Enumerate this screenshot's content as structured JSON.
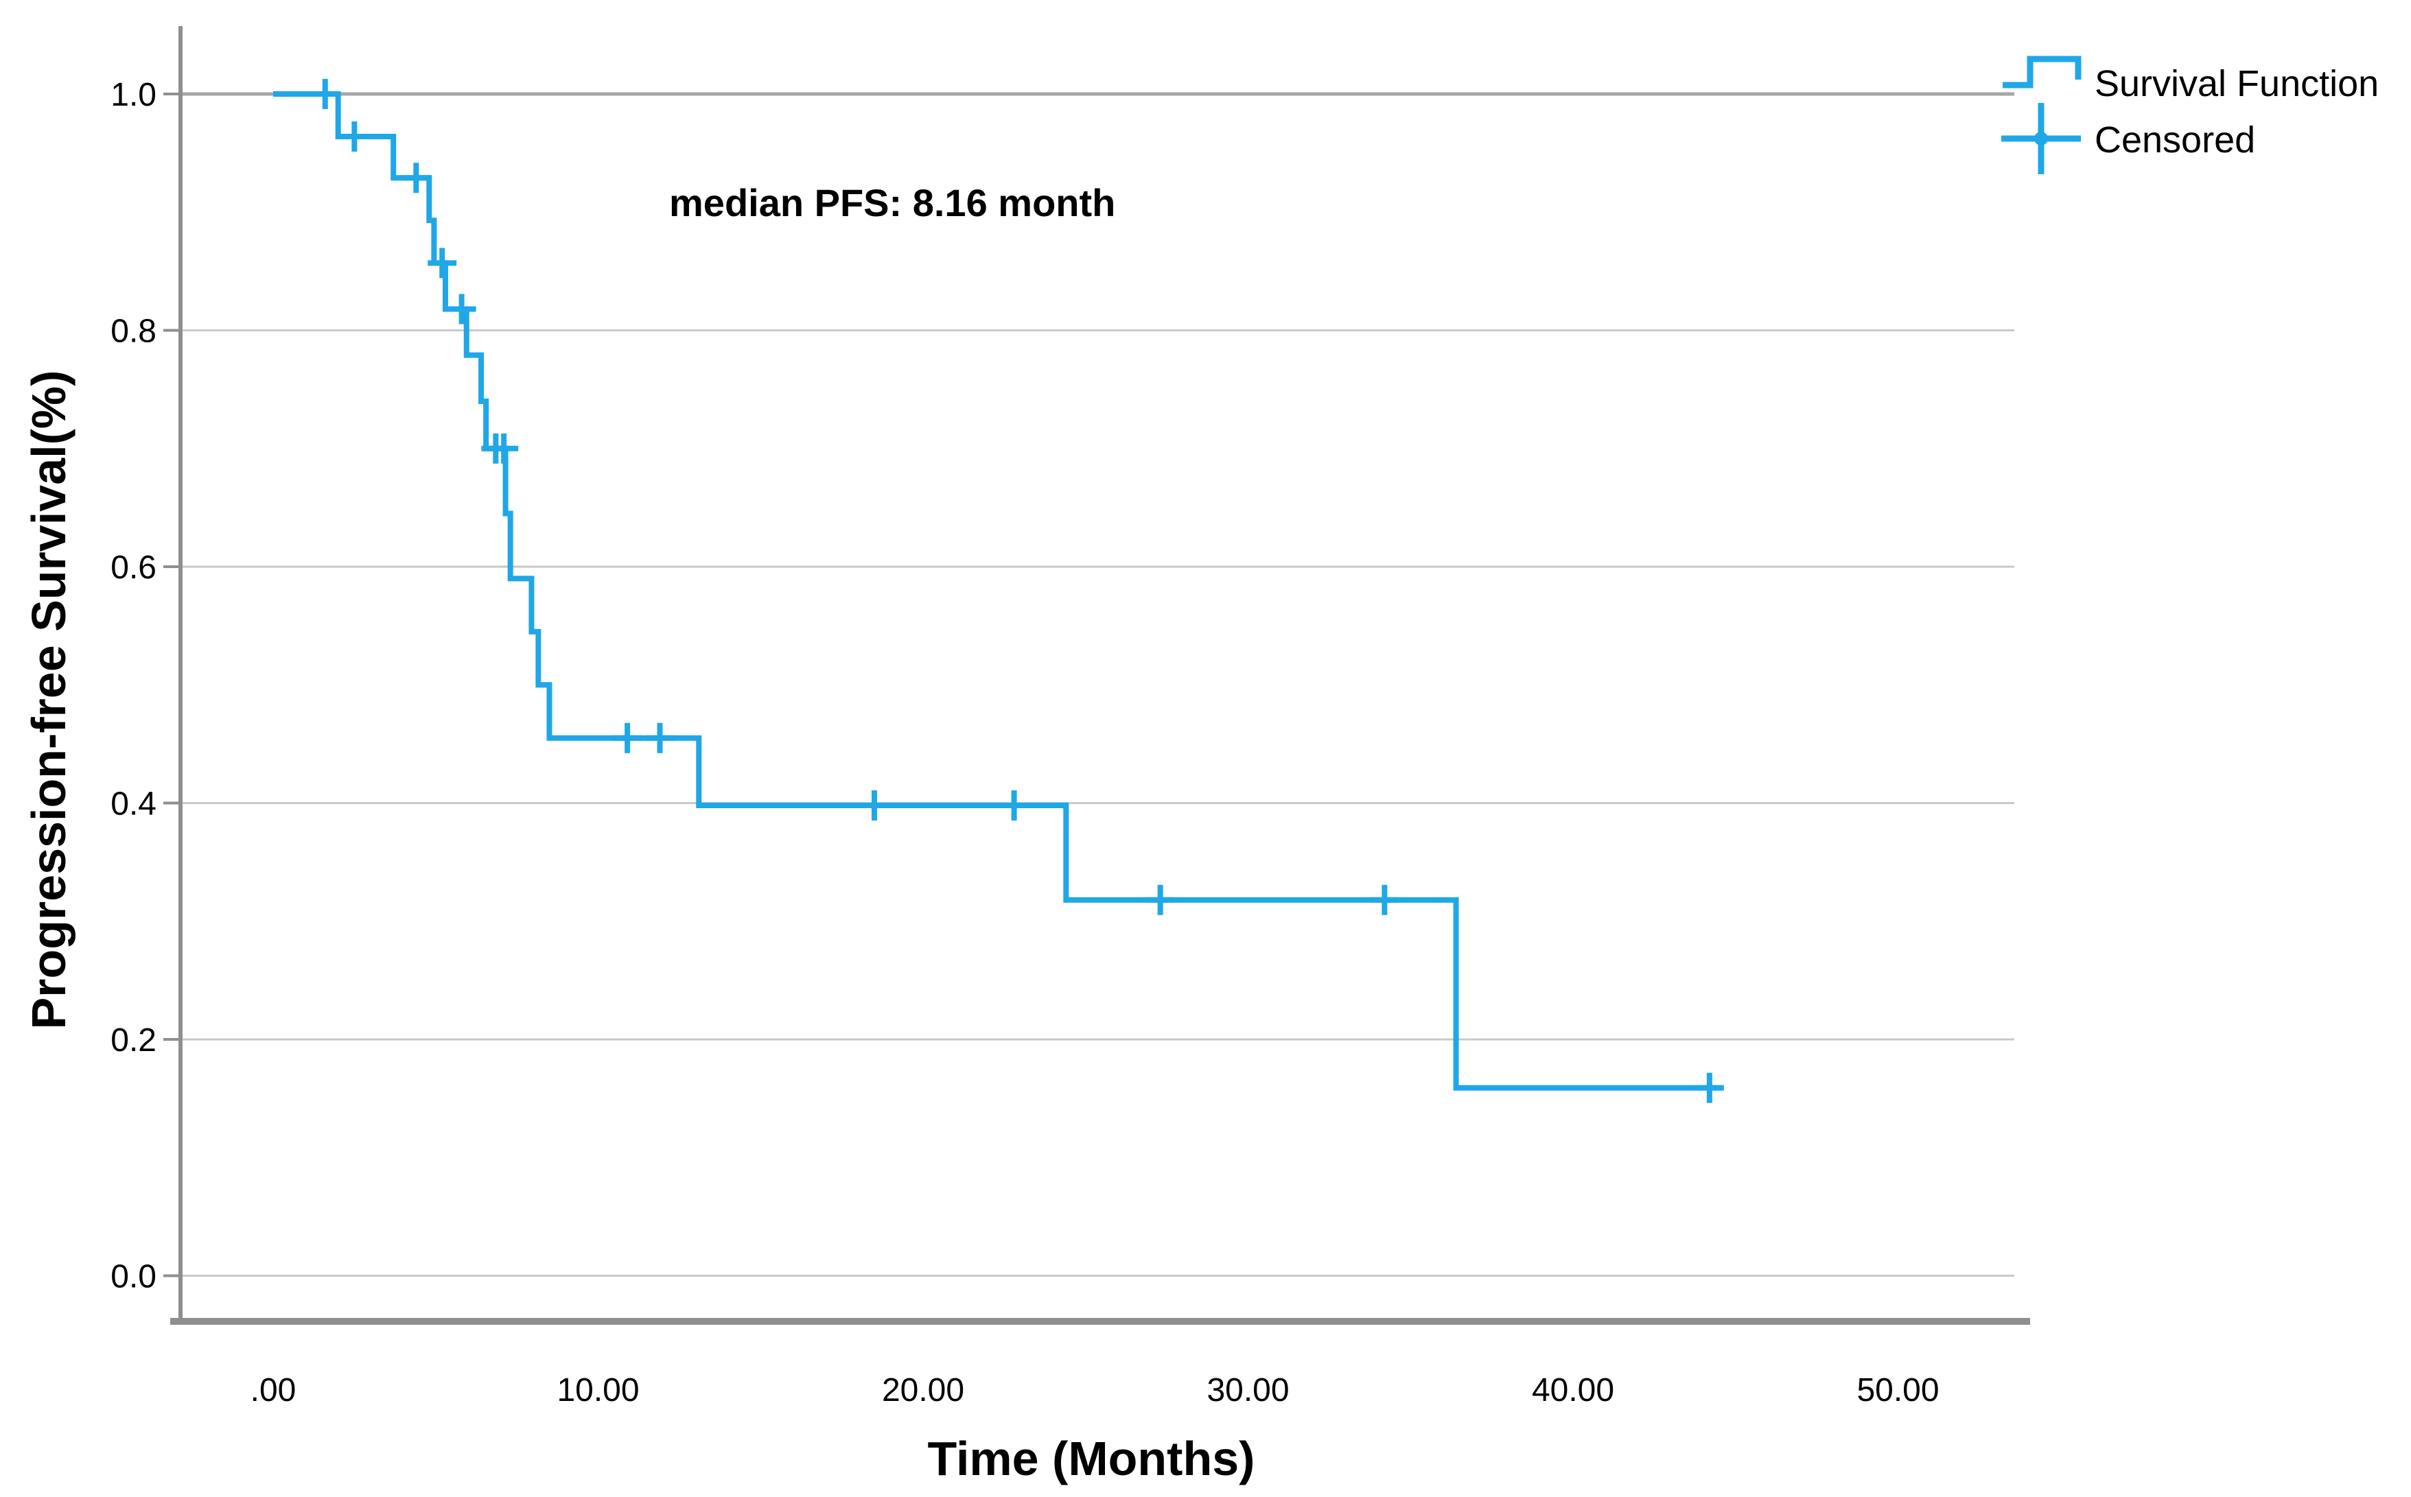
{
  "figure": {
    "background": "#FFFFFF"
  },
  "chart_data": {
    "type": "line",
    "subtype": "kaplan_meier_step",
    "title": "",
    "annotation": "median PFS: 8.16 month",
    "xlabel": "Time (Months)",
    "ylabel": "Progression-free Survival(%)",
    "grid": true,
    "legend": {
      "position": "top-right",
      "entries": [
        {
          "glyph": "step-line-icon",
          "label": "Survival Function"
        },
        {
          "glyph": "plus-icon",
          "label": "Censored"
        }
      ]
    },
    "x_axis": {
      "ticks": [
        {
          "v": 0,
          "label": ".00"
        },
        {
          "v": 10,
          "label": "10.00"
        },
        {
          "v": 20,
          "label": "20.00"
        },
        {
          "v": 30,
          "label": "30.00"
        },
        {
          "v": 40,
          "label": "40.00"
        },
        {
          "v": 50,
          "label": "50.00"
        }
      ],
      "range_months": [
        0,
        50
      ]
    },
    "y_axis": {
      "ticks": [
        {
          "v": 0.0,
          "label": "0.0"
        },
        {
          "v": 0.2,
          "label": "0.2"
        },
        {
          "v": 0.4,
          "label": "0.4"
        },
        {
          "v": 0.6,
          "label": "0.6"
        },
        {
          "v": 0.8,
          "label": "0.8"
        },
        {
          "v": 1.0,
          "label": "1.0"
        }
      ],
      "range": [
        0.0,
        1.0
      ]
    },
    "colors": {
      "curve": "#1FA7E8",
      "grid": "#C9C9C9",
      "grid_top": "#A6A6A6",
      "axis": "#8F8F8F",
      "text": "#000000"
    },
    "series": [
      {
        "name": "Survival Function",
        "steps": [
          [
            0,
            1.0
          ],
          [
            2.0,
            0.964
          ],
          [
            3.7,
            0.929
          ],
          [
            4.8,
            0.893
          ],
          [
            4.95,
            0.857
          ],
          [
            5.3,
            0.818
          ],
          [
            5.95,
            0.779
          ],
          [
            6.4,
            0.74
          ],
          [
            6.55,
            0.7
          ],
          [
            7.15,
            0.645
          ],
          [
            7.3,
            0.59
          ],
          [
            7.95,
            0.545
          ],
          [
            8.16,
            0.5
          ],
          [
            8.5,
            0.455
          ],
          [
            13.1,
            0.398
          ],
          [
            24.4,
            0.318
          ],
          [
            36.4,
            0.159
          ]
        ],
        "end_time": 44.6
      }
    ],
    "censored_points": [
      [
        1.6,
        1.0
      ],
      [
        2.5,
        0.964
      ],
      [
        4.4,
        0.929
      ],
      [
        5.2,
        0.857
      ],
      [
        5.8,
        0.818
      ],
      [
        6.85,
        0.7
      ],
      [
        7.1,
        0.7
      ],
      [
        10.9,
        0.455
      ],
      [
        11.9,
        0.455
      ],
      [
        18.5,
        0.398
      ],
      [
        22.8,
        0.398
      ],
      [
        27.3,
        0.318
      ],
      [
        34.2,
        0.318
      ],
      [
        44.2,
        0.159
      ]
    ]
  }
}
